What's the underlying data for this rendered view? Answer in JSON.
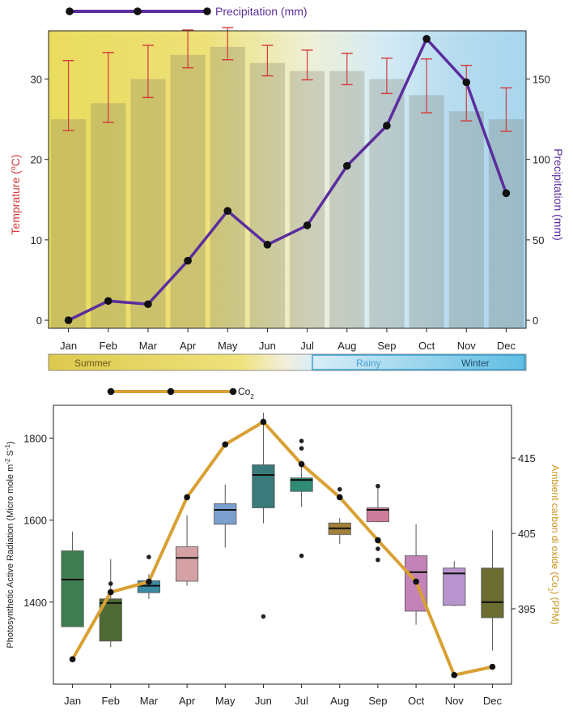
{
  "chart_data": [
    {
      "type": "bar",
      "title": "",
      "categories": [
        "Jan",
        "Feb",
        "Mar",
        "Apr",
        "May",
        "Jun",
        "Jul",
        "Aug",
        "Sep",
        "Oct",
        "Nov",
        "Dec"
      ],
      "ylabel": "Temprature (°C)",
      "ylabel_parts": {
        "pre": "Temprature (",
        "sup": "o",
        "post": "C)"
      },
      "ylabel2": "Precipitation (mm)",
      "ylim": [
        -1,
        36
      ],
      "y2lim": [
        -5,
        180
      ],
      "yticks": [
        0,
        10,
        20,
        30
      ],
      "y2ticks": [
        0,
        50,
        100,
        150
      ],
      "series": [
        {
          "name": "Temperature",
          "kind": "bar",
          "values": [
            25,
            27,
            30,
            33,
            34,
            32,
            31,
            31,
            30,
            28,
            26,
            25
          ],
          "error_low": [
            23.6,
            24.6,
            27.7,
            31.4,
            32.4,
            30.4,
            29.9,
            29.3,
            28.2,
            25.8,
            24.8,
            23.5
          ],
          "error_high": [
            32.3,
            33.3,
            34.2,
            36.1,
            36.4,
            34.2,
            33.6,
            33.2,
            32.6,
            32.5,
            31.7,
            28.9
          ]
        },
        {
          "name": "Precipitation (mm)",
          "kind": "line",
          "axis": "right",
          "values": [
            0,
            12,
            10,
            37,
            68,
            47,
            59,
            96,
            121,
            175,
            148,
            79
          ]
        }
      ],
      "legend": {
        "label": "Precipitation (mm)",
        "position": "top-left"
      },
      "seasons": [
        {
          "label": "Summer"
        },
        {
          "label": "Rainy"
        },
        {
          "label": "Winter"
        }
      ],
      "colors": {
        "precip": "#5b2d9e",
        "temp_label": "#d43a3a",
        "error": "#d43a3a"
      }
    },
    {
      "type": "box",
      "title": "",
      "categories": [
        "Jan",
        "Feb",
        "Mar",
        "Apr",
        "May",
        "Jun",
        "Jul",
        "Aug",
        "Sep",
        "Oct",
        "Nov",
        "Dec"
      ],
      "ylabel": "Photosynthetic Active Radiation (Micro mole m-2 S-1)",
      "ylabel_parts": {
        "a": "Photosynthetic Active Radiation (Micro mole m",
        "sup1": "-2",
        "b": " S",
        "sup2": "-1",
        "c": ")"
      },
      "ylabel2": "Ambient carbon di oxide (Co2) (PPM)",
      "ylabel2_parts": {
        "a": "Ambient carbon di oxide (Co",
        "sub": "2",
        "b": ") (PPM)"
      },
      "ylim": [
        1200,
        1880
      ],
      "y2lim": [
        385,
        422
      ],
      "yticks": [
        1400,
        1600,
        1800
      ],
      "y2ticks": [
        395,
        405,
        415
      ],
      "boxes": [
        {
          "min": 1340,
          "q1": 1340,
          "median": 1455,
          "q3": 1525,
          "max": 1572,
          "outliers": [],
          "color": "#3e7d4f"
        },
        {
          "min": 1290,
          "q1": 1305,
          "median": 1398,
          "q3": 1408,
          "max": 1505,
          "outliers": [
            1445
          ],
          "color": "#4f6a35"
        },
        {
          "min": 1408,
          "q1": 1423,
          "median": 1440,
          "q3": 1452,
          "max": 1468,
          "outliers": [
            1510
          ],
          "color": "#3a8aa0"
        },
        {
          "min": 1440,
          "q1": 1451,
          "median": 1508,
          "q3": 1535,
          "max": 1612,
          "outliers": [],
          "color": "#d4a2a5"
        },
        {
          "min": 1533,
          "q1": 1590,
          "median": 1625,
          "q3": 1640,
          "max": 1687,
          "outliers": [],
          "color": "#7b9fcf"
        },
        {
          "min": 1592,
          "q1": 1630,
          "median": 1710,
          "q3": 1735,
          "max": 1862,
          "outliers": [
            1365
          ],
          "color": "#3a7a7a"
        },
        {
          "min": 1632,
          "q1": 1670,
          "median": 1698,
          "q3": 1703,
          "max": 1735,
          "outliers": [
            1513,
            1775,
            1793
          ],
          "color": "#2f8a76"
        },
        {
          "min": 1542,
          "q1": 1565,
          "median": 1580,
          "q3": 1593,
          "max": 1605,
          "outliers": [
            1675
          ],
          "color": "#a0803a"
        },
        {
          "min": 1595,
          "q1": 1596,
          "median": 1625,
          "q3": 1630,
          "max": 1680,
          "outliers": [
            1530,
            1503,
            1683
          ],
          "color": "#cc7d9a"
        },
        {
          "min": 1345,
          "q1": 1378,
          "median": 1473,
          "q3": 1513,
          "max": 1590,
          "outliers": [],
          "color": "#c383b8"
        },
        {
          "min": 1390,
          "q1": 1392,
          "median": 1470,
          "q3": 1483,
          "max": 1500,
          "outliers": [],
          "color": "#b794cd"
        },
        {
          "min": 1282,
          "q1": 1362,
          "median": 1400,
          "q3": 1483,
          "max": 1575,
          "outliers": [],
          "color": "#6a6c30"
        }
      ],
      "line": {
        "name": "Co2",
        "axis": "right",
        "values": [
          388.3,
          397.2,
          398.6,
          409.8,
          416.8,
          419.8,
          414.2,
          409.8,
          404.1,
          398.6,
          386.2,
          387.3
        ]
      },
      "legend": {
        "label": "Co2",
        "label_parts": {
          "a": "Co",
          "sub": "2"
        },
        "position": "top-left"
      },
      "colors": {
        "co2": "#d9a033",
        "ylabel2": "#c8941c"
      }
    }
  ]
}
